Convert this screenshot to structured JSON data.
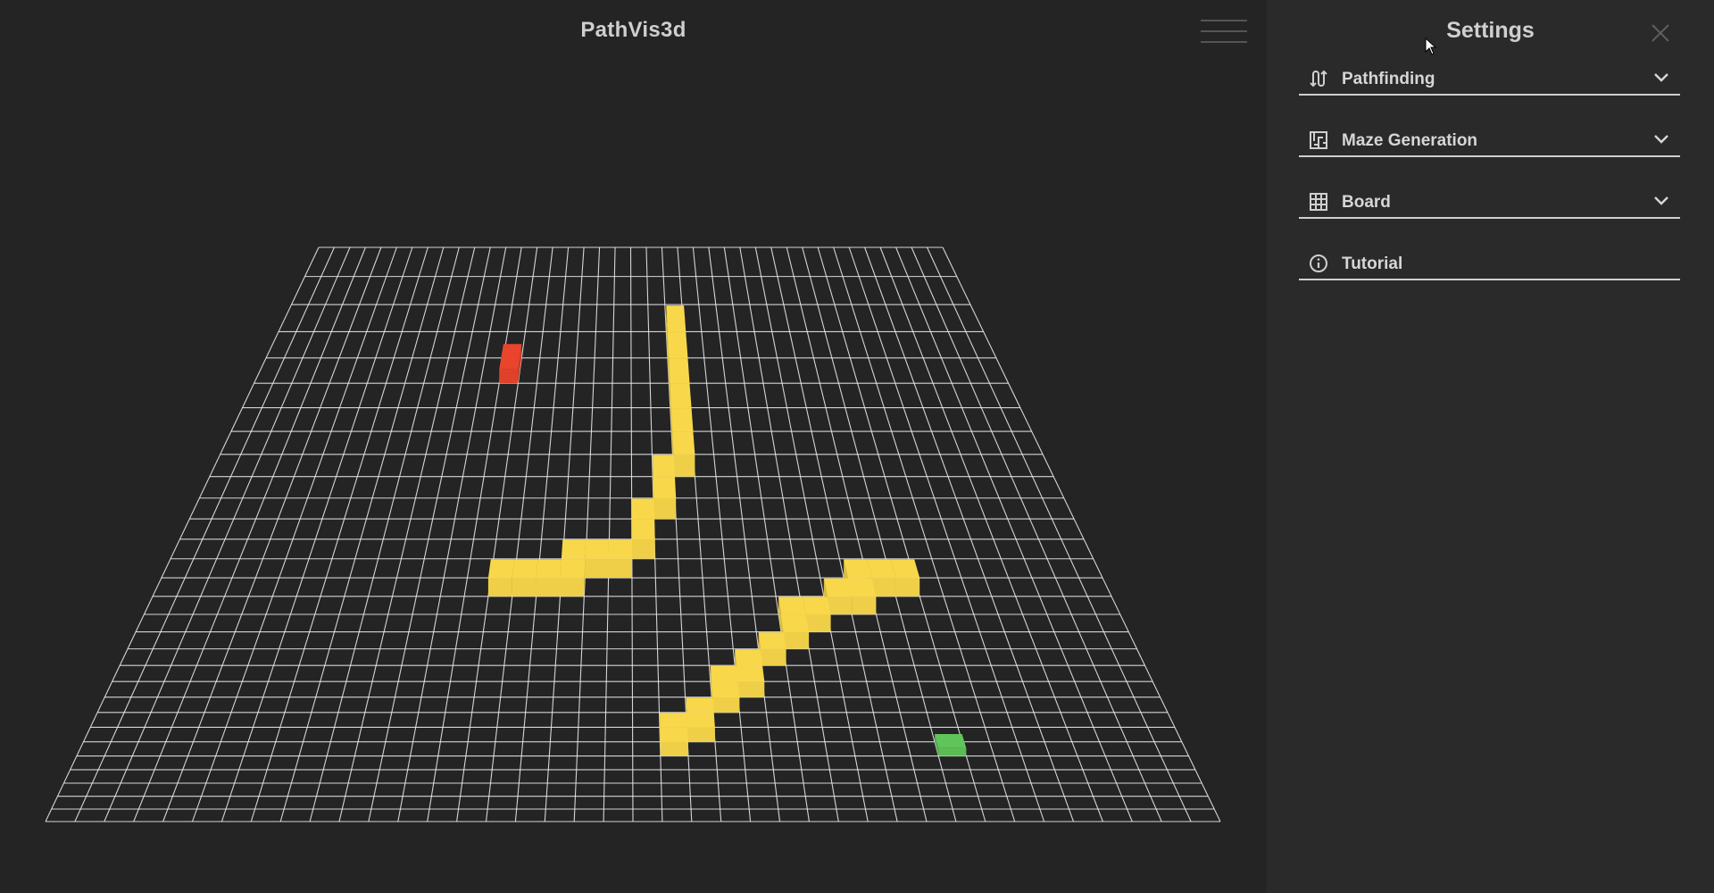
{
  "app": {
    "title": "PathVis3d"
  },
  "settings": {
    "title": "Settings",
    "sections": [
      {
        "label": "Pathfinding",
        "icon": "path-icon",
        "expandable": true
      },
      {
        "label": "Maze Generation",
        "icon": "maze-icon",
        "expandable": true
      },
      {
        "label": "Board",
        "icon": "grid-icon",
        "expandable": true
      },
      {
        "label": "Tutorial",
        "icon": "info-icon",
        "expandable": false
      }
    ]
  },
  "board": {
    "columns": 40,
    "rows": 30,
    "grid_color": "#e8e8ee",
    "start_node": {
      "col": 13,
      "row": 4,
      "color": "#e8452c"
    },
    "end_node": {
      "col": 31,
      "row": 24,
      "color": "#5fc45a"
    },
    "wall_color": "#f8d84a",
    "walls": [
      [
        22,
        3
      ],
      [
        22,
        4
      ],
      [
        22,
        5
      ],
      [
        22,
        6
      ],
      [
        22,
        7
      ],
      [
        22,
        8
      ],
      [
        21,
        9
      ],
      [
        21,
        10
      ],
      [
        20,
        11
      ],
      [
        20,
        12
      ],
      [
        19,
        13
      ],
      [
        18,
        13
      ],
      [
        17,
        13
      ],
      [
        17,
        14
      ],
      [
        16,
        14
      ],
      [
        15,
        14
      ],
      [
        14,
        14
      ],
      [
        31,
        14
      ],
      [
        30,
        14
      ],
      [
        29,
        14
      ],
      [
        29,
        15
      ],
      [
        28,
        15
      ],
      [
        27,
        16
      ],
      [
        26,
        16
      ],
      [
        26,
        17
      ],
      [
        25,
        18
      ],
      [
        24,
        19
      ],
      [
        24,
        20
      ],
      [
        23,
        20
      ],
      [
        23,
        21
      ],
      [
        22,
        22
      ],
      [
        22,
        23
      ],
      [
        21,
        23
      ],
      [
        21,
        24
      ]
    ]
  }
}
